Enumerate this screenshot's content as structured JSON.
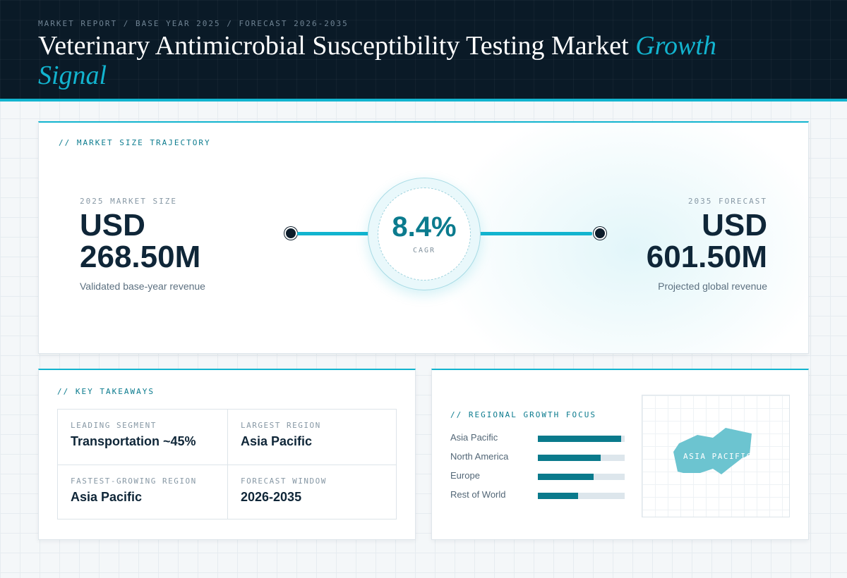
{
  "header": {
    "kicker": "MARKET REPORT / BASE YEAR 2025 / FORECAST 2026-2035",
    "title_main": "Veterinary Antimicrobial Susceptibility Testing Market",
    "title_accent": "Growth Signal"
  },
  "trajectory": {
    "label": "// MARKET SIZE TRAJECTORY",
    "start": {
      "label": "2025 MARKET SIZE",
      "value_line1": "USD",
      "value_line2": "268.50M",
      "sub": "Validated base-year revenue"
    },
    "cagr": {
      "value": "8.4%",
      "label": "CAGR"
    },
    "end": {
      "label": "2035 FORECAST",
      "value_line1": "USD",
      "value_line2": "601.50M",
      "sub": "Projected global revenue"
    }
  },
  "takeaways": {
    "label": "// KEY TAKEAWAYS",
    "cells": [
      {
        "label": "LEADING SEGMENT",
        "value": "Transportation ~45%"
      },
      {
        "label": "LARGEST REGION",
        "value": "Asia Pacific"
      },
      {
        "label": "FASTEST-GROWING REGION",
        "value": "Asia Pacific"
      },
      {
        "label": "FORECAST WINDOW",
        "value": "2026-2035"
      }
    ]
  },
  "regional": {
    "label": "// REGIONAL GROWTH FOCUS",
    "bars": [
      {
        "name": "Asia Pacific",
        "share": 0.96
      },
      {
        "name": "North America",
        "share": 0.72
      },
      {
        "name": "Europe",
        "share": 0.64
      },
      {
        "name": "Rest of World",
        "share": 0.46
      }
    ],
    "map_label": "ASIA PACIFIC"
  },
  "colors": {
    "accent": "#12b4cf",
    "accent_dark": "#0b7b8e",
    "bar_fill": "#0a7a8c",
    "header_bg": "#0a1a27",
    "map_shape": "#6cc4d0"
  }
}
